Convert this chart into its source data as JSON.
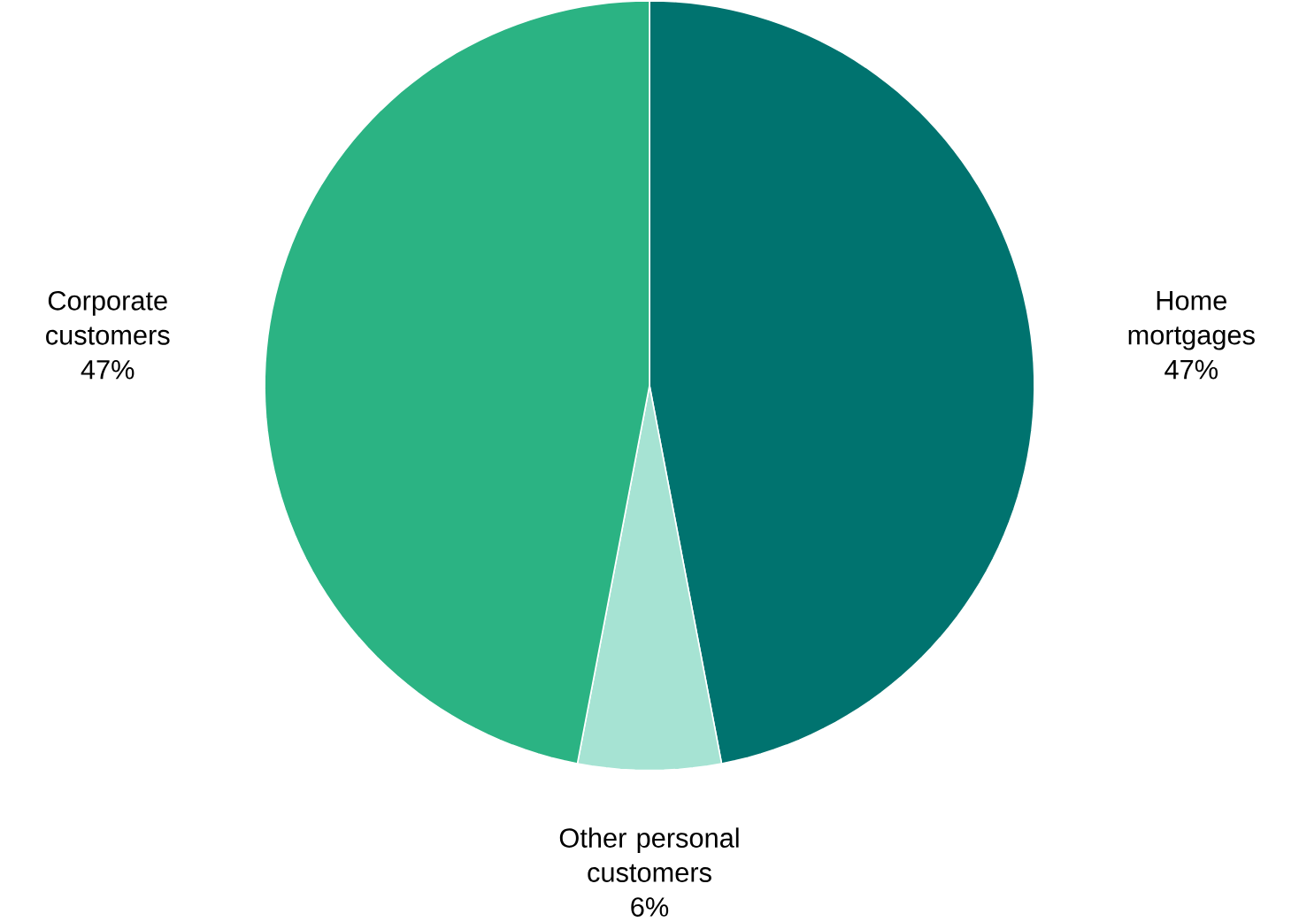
{
  "chart_data": {
    "type": "pie",
    "categories": [
      "Home mortgages",
      "Other personal customers",
      "Corporate customers"
    ],
    "values": [
      47,
      6,
      47
    ],
    "colors": [
      "#00736f",
      "#a6e3d3",
      "#2bb383"
    ],
    "value_labels": [
      "47%",
      "6%",
      "47%"
    ]
  }
}
